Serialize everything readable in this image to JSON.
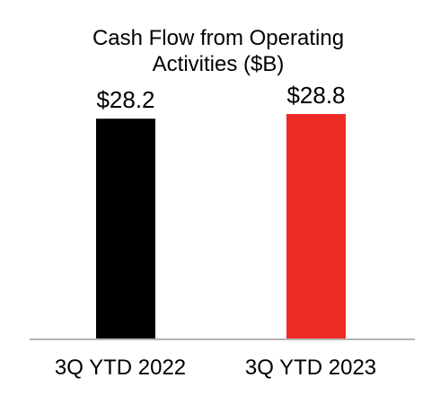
{
  "chart_data": {
    "type": "bar",
    "title_lines": [
      "Cash Flow from Operating",
      "Activities ($B)"
    ],
    "title": "Cash Flow from Operating Activities ($B)",
    "xlabel": "",
    "ylabel": "",
    "categories": [
      "3Q YTD 2022",
      "3Q YTD 2023"
    ],
    "values": [
      28.2,
      28.8
    ],
    "value_labels": [
      "$28.2",
      "$28.8"
    ],
    "colors": [
      "#000000",
      "#ee2a24"
    ],
    "axis_color": "#b3b3b3",
    "ylim": [
      0,
      28.8
    ],
    "grid": false,
    "legend": "none"
  }
}
